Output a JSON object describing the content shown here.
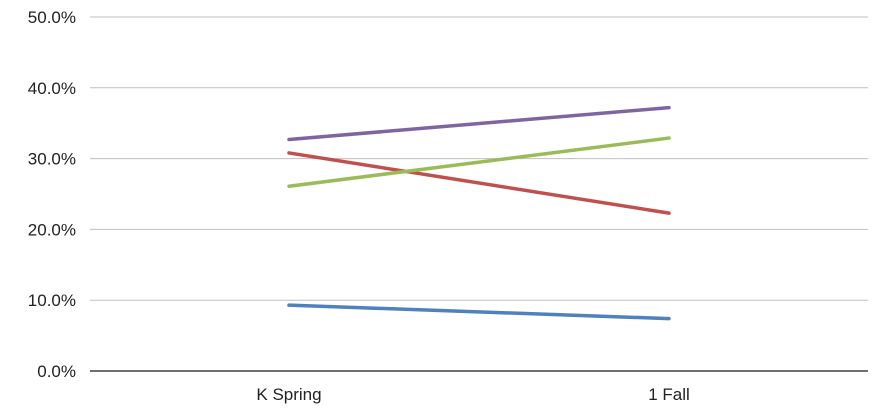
{
  "chart_data": {
    "type": "line",
    "title": "",
    "xlabel": "",
    "ylabel": "",
    "categories": [
      "K Spring",
      "1 Fall"
    ],
    "ylim": [
      0,
      0.5
    ],
    "yticks": [
      0.0,
      0.1,
      0.2,
      0.3,
      0.4,
      0.5
    ],
    "ytick_labels": [
      "0.0%",
      "10.0%",
      "20.0%",
      "30.0%",
      "40.0%",
      "50.0%"
    ],
    "grid": true,
    "legend": "none",
    "series": [
      {
        "color": "#4F81BD",
        "values": [
          0.093,
          0.074
        ]
      },
      {
        "color": "#C0504D",
        "values": [
          0.308,
          0.223
        ]
      },
      {
        "color": "#9BBB59",
        "values": [
          0.261,
          0.329
        ]
      },
      {
        "color": "#8064A2",
        "values": [
          0.327,
          0.372
        ]
      }
    ],
    "colors": {
      "grid": "#BFBFBF",
      "axis": "#404040"
    }
  }
}
